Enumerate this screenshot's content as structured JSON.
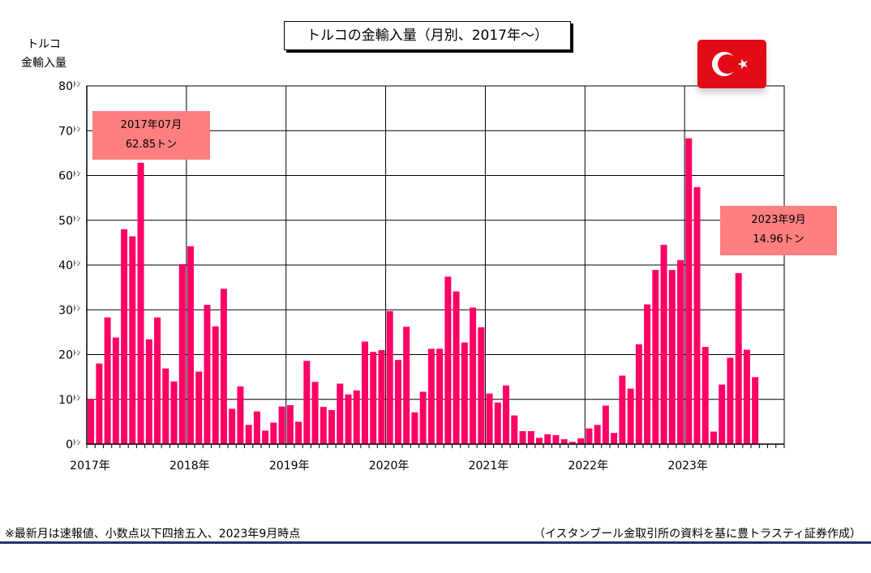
{
  "title": "トルコの金輸入量（月別、2017年～）",
  "ylabel_line1": "トルコ",
  "ylabel_line2": "金輸入量",
  "callout_first": {
    "line1": "2017年07月",
    "line2": "62.85トン"
  },
  "callout_latest": {
    "line1": "2023年9月",
    "line2": "14.96トン"
  },
  "footnote": "※最新月は速報値、小数点以下四捨五入、2023年9月時点",
  "source": "（イスタンブール金取引所の資料を基に豊トラスティ証券作成）",
  "flag_icon": "turkey-flag-icon",
  "colors": {
    "bar": "#ff0066",
    "callout": "#ff7f7f",
    "flag": "#e30a17"
  },
  "chart_data": {
    "type": "bar",
    "unit_suffix": "ﾄﾝ",
    "ylim": [
      0,
      80
    ],
    "yticks": [
      0,
      10,
      20,
      30,
      40,
      50,
      60,
      70,
      80
    ],
    "year_labels": [
      "2017年",
      "2018年",
      "2019年",
      "2020年",
      "2021年",
      "2022年",
      "2023年"
    ],
    "months_on_axis": 84,
    "grid": true,
    "series": [
      {
        "values": [
          10.1,
          18.0,
          28.3,
          23.8,
          48.0,
          46.4,
          62.85,
          23.4,
          28.3,
          16.9,
          14.0,
          40.2,
          44.2,
          16.2,
          31.1,
          26.3,
          34.7,
          7.9,
          12.9,
          4.3,
          7.3,
          3.0,
          4.8,
          8.4,
          8.7,
          5.0,
          18.6,
          13.9,
          8.3,
          7.6,
          13.5,
          11.1,
          12.0,
          22.9,
          20.6,
          21.0,
          29.7,
          18.8,
          26.2,
          7.1,
          11.7,
          21.3,
          21.3,
          37.4,
          34.1,
          22.7,
          30.5,
          26.1,
          11.3,
          9.3,
          13.1,
          6.4,
          2.9,
          2.9,
          1.4,
          2.2,
          2.0,
          1.1,
          0.5,
          1.3,
          3.5,
          4.3,
          8.6,
          2.5,
          15.3,
          12.4,
          22.3,
          31.2,
          38.9,
          44.5,
          38.9,
          41.1,
          68.3,
          57.4,
          21.7,
          2.8,
          13.3,
          19.3,
          38.2,
          21.1,
          14.96
        ]
      }
    ]
  }
}
